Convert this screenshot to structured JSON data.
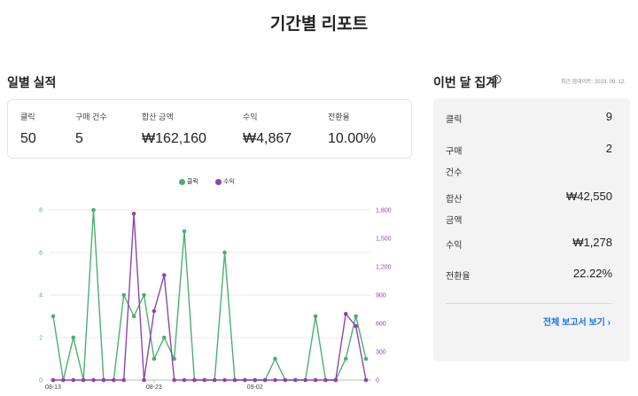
{
  "page": {
    "title": "기간별 리포트"
  },
  "daily": {
    "section_title": "일별 실적",
    "stats": [
      {
        "label": "클릭",
        "value": "50"
      },
      {
        "label": "구매 건수",
        "value": "5"
      },
      {
        "label": "합산 금액",
        "value": "₩162,160"
      },
      {
        "label": "수익",
        "value": "₩4,867"
      },
      {
        "label": "전환율",
        "value": "10.00%"
      }
    ]
  },
  "monthly": {
    "section_title": "이번 달 집계",
    "help_icon": "question-circle-icon",
    "updated_text": "최근 업데이트: 2023. 09. 12.",
    "rows": [
      {
        "label": "클릭",
        "value": "9"
      },
      {
        "label": "구매 건수",
        "value": "2"
      },
      {
        "label": "합산 금액",
        "value": "₩42,550"
      },
      {
        "label": "수익",
        "value": "₩1,278"
      },
      {
        "label": "전환율",
        "value": "22.22%"
      }
    ],
    "report_link": "전체 보고서 보기 ›"
  },
  "chart_data": {
    "type": "line",
    "x_tick_labels": [
      "08-13",
      "08-23",
      "09-02"
    ],
    "y_left_ticks": [
      "0",
      "2",
      "4",
      "6",
      "8"
    ],
    "y_right_ticks": [
      "0",
      "300",
      "600",
      "900",
      "1,200",
      "1,500",
      "1,800"
    ],
    "ylim_left": [
      0,
      8
    ],
    "ylim_right": [
      0,
      1800
    ],
    "grid": true,
    "legend_position": "top-center",
    "series": [
      {
        "name": "클릭",
        "axis": "left",
        "color": "#4caf6e",
        "values": [
          3,
          0,
          2,
          0,
          8,
          0,
          0,
          4,
          3,
          4,
          1,
          2,
          1,
          7,
          0,
          0,
          0,
          6,
          0,
          0,
          0,
          0,
          1,
          0,
          0,
          0,
          3,
          0,
          0,
          1,
          3,
          1
        ]
      },
      {
        "name": "수익",
        "axis": "right",
        "color": "#8e44ad",
        "values": [
          0,
          0,
          0,
          0,
          0,
          0,
          0,
          0,
          1760,
          0,
          730,
          1110,
          0,
          0,
          0,
          0,
          0,
          0,
          0,
          0,
          0,
          0,
          0,
          0,
          0,
          0,
          0,
          0,
          0,
          700,
          570,
          0
        ]
      }
    ]
  }
}
